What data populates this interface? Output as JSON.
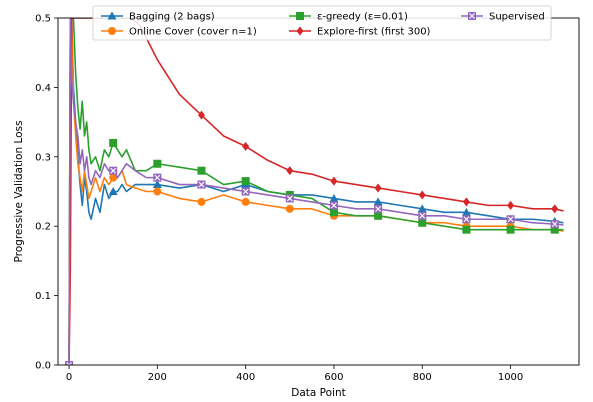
{
  "chart_data": {
    "type": "line",
    "title": "",
    "xlabel": "Data Point",
    "ylabel": "Progressive Validation Loss",
    "xlim": [
      -25,
      1155
    ],
    "ylim": [
      0.0,
      0.5
    ],
    "xticks": [
      0,
      200,
      400,
      600,
      800,
      1000
    ],
    "yticks": [
      0.0,
      0.1,
      0.2,
      0.3,
      0.4,
      0.5
    ],
    "xtick_labels": [
      "0",
      "200",
      "400",
      "600",
      "800",
      "1000"
    ],
    "ytick_labels": [
      "0.0",
      "0.1",
      "0.2",
      "0.3",
      "0.4",
      "0.5"
    ],
    "grid": false,
    "legend_position": "top",
    "series": [
      {
        "name": "Bagging (2 bags)",
        "color": "#1f77b4",
        "marker": "triangle",
        "x": [
          0,
          3,
          6,
          10,
          15,
          20,
          25,
          30,
          35,
          40,
          45,
          50,
          60,
          70,
          80,
          90,
          100,
          110,
          120,
          130,
          150,
          175,
          200,
          250,
          300,
          350,
          400,
          450,
          500,
          550,
          600,
          650,
          700,
          750,
          800,
          850,
          900,
          950,
          1000,
          1050,
          1100,
          1120
        ],
        "y": [
          0.0,
          0.5,
          0.5,
          0.4,
          0.35,
          0.3,
          0.26,
          0.23,
          0.27,
          0.25,
          0.22,
          0.21,
          0.24,
          0.22,
          0.26,
          0.24,
          0.25,
          0.25,
          0.26,
          0.25,
          0.26,
          0.26,
          0.26,
          0.255,
          0.26,
          0.25,
          0.26,
          0.25,
          0.245,
          0.245,
          0.24,
          0.235,
          0.235,
          0.23,
          0.225,
          0.22,
          0.22,
          0.215,
          0.21,
          0.21,
          0.207,
          0.205
        ],
        "marker_x": [
          0,
          100,
          200,
          300,
          400,
          500,
          600,
          700,
          800,
          900,
          1000,
          1100
        ]
      },
      {
        "name": "Online Cover (cover n=1)",
        "color": "#ff7f0e",
        "marker": "circle",
        "x": [
          0,
          3,
          6,
          10,
          15,
          20,
          25,
          30,
          35,
          40,
          45,
          50,
          60,
          70,
          80,
          90,
          100,
          110,
          120,
          130,
          150,
          175,
          200,
          250,
          300,
          350,
          400,
          450,
          500,
          550,
          600,
          650,
          700,
          750,
          800,
          850,
          900,
          950,
          1000,
          1050,
          1100,
          1120
        ],
        "y": [
          0.0,
          0.5,
          0.5,
          0.38,
          0.33,
          0.29,
          0.27,
          0.25,
          0.28,
          0.26,
          0.24,
          0.25,
          0.27,
          0.25,
          0.27,
          0.26,
          0.27,
          0.27,
          0.28,
          0.26,
          0.255,
          0.25,
          0.25,
          0.24,
          0.235,
          0.245,
          0.235,
          0.23,
          0.225,
          0.225,
          0.215,
          0.215,
          0.215,
          0.21,
          0.205,
          0.205,
          0.2,
          0.2,
          0.2,
          0.195,
          0.195,
          0.193
        ],
        "marker_x": [
          0,
          100,
          200,
          300,
          400,
          500,
          600,
          700,
          800,
          900,
          1000,
          1100
        ]
      },
      {
        "name": "ε-greedy (ε=0.01)",
        "color": "#2ca02c",
        "marker": "square",
        "x": [
          0,
          3,
          6,
          10,
          15,
          20,
          25,
          30,
          35,
          40,
          45,
          50,
          60,
          70,
          80,
          90,
          100,
          110,
          120,
          130,
          150,
          175,
          200,
          250,
          300,
          350,
          400,
          450,
          500,
          550,
          600,
          650,
          700,
          750,
          800,
          850,
          900,
          950,
          1000,
          1050,
          1100,
          1120
        ],
        "y": [
          0.0,
          0.5,
          0.5,
          0.5,
          0.42,
          0.37,
          0.34,
          0.38,
          0.33,
          0.35,
          0.31,
          0.29,
          0.3,
          0.28,
          0.31,
          0.3,
          0.32,
          0.31,
          0.3,
          0.31,
          0.28,
          0.28,
          0.29,
          0.285,
          0.28,
          0.26,
          0.265,
          0.25,
          0.245,
          0.24,
          0.22,
          0.215,
          0.215,
          0.21,
          0.205,
          0.2,
          0.195,
          0.195,
          0.195,
          0.195,
          0.195,
          0.195
        ],
        "marker_x": [
          0,
          100,
          200,
          300,
          400,
          500,
          600,
          700,
          800,
          900,
          1000,
          1100
        ]
      },
      {
        "name": "Explore-first (first 300)",
        "color": "#d62728",
        "marker": "diamond",
        "x": [
          0,
          3,
          6,
          9,
          12,
          14,
          16,
          20,
          40,
          60,
          80,
          100,
          120,
          140,
          160,
          200,
          250,
          300,
          350,
          400,
          450,
          500,
          550,
          600,
          650,
          700,
          750,
          800,
          850,
          900,
          950,
          1000,
          1050,
          1100,
          1120
        ],
        "y": [
          0.0,
          0.14,
          0.5,
          0.5,
          0.5,
          0.5,
          0.5,
          0.5,
          0.5,
          0.5,
          0.5,
          0.5,
          0.5,
          0.5,
          0.49,
          0.44,
          0.39,
          0.36,
          0.33,
          0.315,
          0.295,
          0.28,
          0.275,
          0.265,
          0.26,
          0.255,
          0.25,
          0.245,
          0.24,
          0.235,
          0.23,
          0.23,
          0.225,
          0.225,
          0.222
        ],
        "marker_x": [
          0,
          300,
          400,
          500,
          600,
          700,
          800,
          900,
          1000,
          1100
        ]
      },
      {
        "name": "Supervised",
        "color": "#9467bd",
        "marker": "x-square",
        "x": [
          0,
          3,
          6,
          10,
          15,
          20,
          25,
          30,
          35,
          40,
          45,
          50,
          60,
          70,
          80,
          90,
          100,
          110,
          120,
          130,
          150,
          175,
          200,
          250,
          300,
          350,
          400,
          450,
          500,
          550,
          600,
          650,
          700,
          750,
          800,
          850,
          900,
          950,
          1000,
          1050,
          1100,
          1120
        ],
        "y": [
          0.0,
          0.5,
          0.41,
          0.38,
          0.35,
          0.33,
          0.29,
          0.31,
          0.28,
          0.3,
          0.27,
          0.26,
          0.28,
          0.27,
          0.29,
          0.28,
          0.28,
          0.27,
          0.28,
          0.29,
          0.28,
          0.27,
          0.27,
          0.26,
          0.26,
          0.255,
          0.25,
          0.245,
          0.24,
          0.235,
          0.23,
          0.225,
          0.225,
          0.22,
          0.215,
          0.215,
          0.21,
          0.21,
          0.21,
          0.205,
          0.203,
          0.202
        ],
        "marker_x": [
          0,
          100,
          200,
          300,
          400,
          500,
          600,
          700,
          800,
          900,
          1000,
          1100
        ]
      }
    ]
  }
}
